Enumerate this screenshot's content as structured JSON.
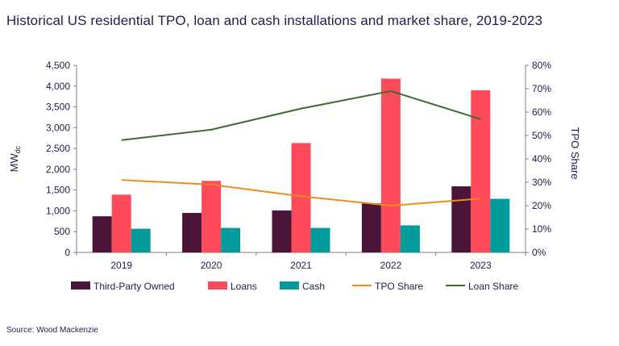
{
  "title": "Historical US residential TPO, loan and cash installations and market share, 2019-2023",
  "source": "Source: Wood Mackenzie",
  "colors": {
    "tpo_bar": "#4a1538",
    "loans_bar": "#ff4a5c",
    "cash_bar": "#009b9a",
    "tpo_share": "#f28a1c",
    "loan_share": "#3c6b2e",
    "axis": "#7f7f7f",
    "text": "#1e1e4b"
  },
  "chart_data": {
    "type": "bar",
    "categories": [
      "2019",
      "2020",
      "2021",
      "2022",
      "2023"
    ],
    "ylabel": "MWdc",
    "ylabel_main": "MW",
    "ylabel_sub": "dc",
    "y2label": "TPO Share",
    "ylim": [
      0,
      4500
    ],
    "y_ticks": [
      0,
      500,
      1000,
      1500,
      2000,
      2500,
      3000,
      3500,
      4000,
      4500
    ],
    "y_tick_labels": [
      "0",
      "500",
      "1,000",
      "1,500",
      "2,000",
      "2,500",
      "3,000",
      "3,500",
      "4,000",
      "4,500"
    ],
    "y2lim": [
      0,
      0.8
    ],
    "y2_ticks": [
      0,
      0.1,
      0.2,
      0.3,
      0.4,
      0.5,
      0.6,
      0.7,
      0.8
    ],
    "y2_tick_labels": [
      "0%",
      "10%",
      "20%",
      "30%",
      "40%",
      "50%",
      "60%",
      "70%",
      "80%"
    ],
    "grid": false,
    "legend_position": "bottom",
    "series": [
      {
        "name": "Third-Party Owned",
        "kind": "bar",
        "axis": "left",
        "color_key": "tpo_bar",
        "values": [
          870,
          950,
          1010,
          1180,
          1590
        ]
      },
      {
        "name": "Loans",
        "kind": "bar",
        "axis": "left",
        "color_key": "loans_bar",
        "values": [
          1390,
          1720,
          2630,
          4180,
          3900
        ]
      },
      {
        "name": "Cash",
        "kind": "bar",
        "axis": "left",
        "color_key": "cash_bar",
        "values": [
          570,
          590,
          590,
          650,
          1290
        ]
      },
      {
        "name": "TPO Share",
        "kind": "line",
        "axis": "right",
        "color_key": "tpo_share",
        "values": [
          0.31,
          0.29,
          0.24,
          0.2,
          0.23
        ]
      },
      {
        "name": "Loan Share",
        "kind": "line",
        "axis": "right",
        "color_key": "loan_share",
        "values": [
          0.48,
          0.525,
          0.615,
          0.69,
          0.57
        ]
      }
    ]
  }
}
